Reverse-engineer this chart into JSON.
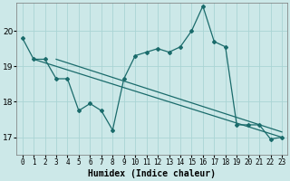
{
  "xlabel": "Humidex (Indice chaleur)",
  "ylabel": "",
  "bg_color": "#cce8e8",
  "grid_color": "#aad4d4",
  "line_color": "#1a6b6b",
  "xlim": [
    -0.5,
    23.5
  ],
  "ylim": [
    16.5,
    20.8
  ],
  "xticks": [
    0,
    1,
    2,
    3,
    4,
    5,
    6,
    7,
    8,
    9,
    10,
    11,
    12,
    13,
    14,
    15,
    16,
    17,
    18,
    19,
    20,
    21,
    22,
    23
  ],
  "yticks": [
    17,
    18,
    19,
    20
  ],
  "series1": [
    19.8,
    19.2,
    19.2,
    18.65,
    18.65,
    17.75,
    17.95,
    17.75,
    17.2,
    18.65,
    19.3,
    19.4,
    19.5,
    19.4,
    19.55,
    20.0,
    20.7,
    19.7,
    19.55,
    17.35,
    17.35,
    17.35,
    16.95,
    17.0
  ],
  "series2_x": [
    1,
    23
  ],
  "series2_y": [
    19.2,
    17.0
  ],
  "series3_x": [
    3,
    23
  ],
  "series3_y": [
    19.2,
    17.15
  ]
}
